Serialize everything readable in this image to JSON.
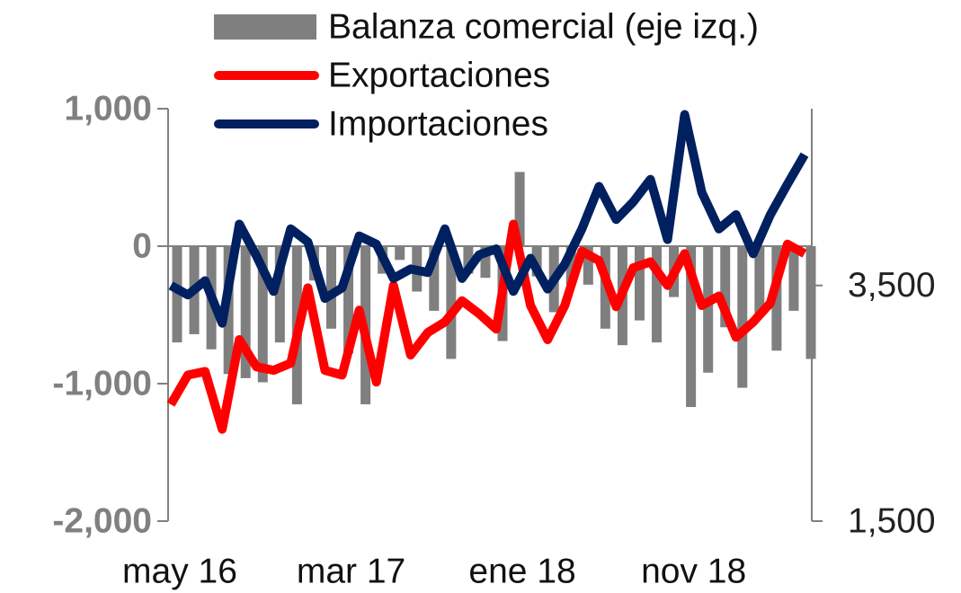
{
  "chart_data": {
    "type": "bar_line",
    "categories": [
      "may 16",
      null,
      null,
      null,
      null,
      null,
      null,
      null,
      null,
      null,
      "mar 17",
      null,
      null,
      null,
      null,
      null,
      null,
      null,
      null,
      null,
      "ene 18",
      null,
      null,
      null,
      null,
      null,
      null,
      null,
      null,
      null,
      "nov 18",
      null,
      null,
      null,
      null,
      null,
      null,
      null
    ],
    "series": [
      {
        "name": "Balanza comercial (eje izq.)",
        "type": "bar",
        "color": "#7f7f7f",
        "axis": "y",
        "values": [
          -700,
          -640,
          -750,
          -930,
          -960,
          -990,
          -700,
          -1150,
          -250,
          -600,
          -780,
          -1150,
          -200,
          -100,
          -330,
          -470,
          -820,
          -200,
          -230,
          -690,
          540,
          -220,
          -480,
          -280,
          -280,
          -600,
          -720,
          -540,
          -700,
          -370,
          -1170,
          -920,
          -590,
          -1030,
          -500,
          -760,
          -470,
          -820
        ]
      },
      {
        "name": "Exportaciones",
        "type": "line",
        "color": "#ff0000",
        "axis": "y2",
        "values": [
          2490,
          2740,
          2770,
          2280,
          3040,
          2810,
          2780,
          2840,
          3480,
          2780,
          2740,
          3290,
          2680,
          3500,
          2910,
          3100,
          3190,
          3370,
          3260,
          3130,
          4020,
          3330,
          3040,
          3330,
          3790,
          3710,
          3320,
          3650,
          3700,
          3500,
          3770,
          3330,
          3410,
          3060,
          3190,
          3350,
          3850,
          3770
        ]
      },
      {
        "name": "Importaciones",
        "type": "line",
        "color": "#002060",
        "axis": "y2",
        "values": [
          3500,
          3420,
          3540,
          3180,
          4020,
          3750,
          3450,
          3980,
          3870,
          3390,
          3480,
          3920,
          3850,
          3560,
          3640,
          3610,
          3980,
          3560,
          3760,
          3810,
          3450,
          3730,
          3470,
          3680,
          3980,
          4340,
          4060,
          4210,
          4400,
          3890,
          4950,
          4290,
          3980,
          4100,
          3770,
          4100,
          4360,
          4610
        ]
      }
    ],
    "ylim": [
      -2000,
      1000
    ],
    "yticks": [
      {
        "value": -2000,
        "label": "-2,000"
      },
      {
        "value": -1000,
        "label": "-1,000"
      },
      0,
      {
        "value": 1000,
        "label": "1,000"
      }
    ],
    "y2lim": [
      1500,
      5000
    ],
    "y2ticks": [
      {
        "value": 1500,
        "label": "1,500"
      },
      {
        "value": 3500,
        "label": "3,500"
      }
    ]
  }
}
